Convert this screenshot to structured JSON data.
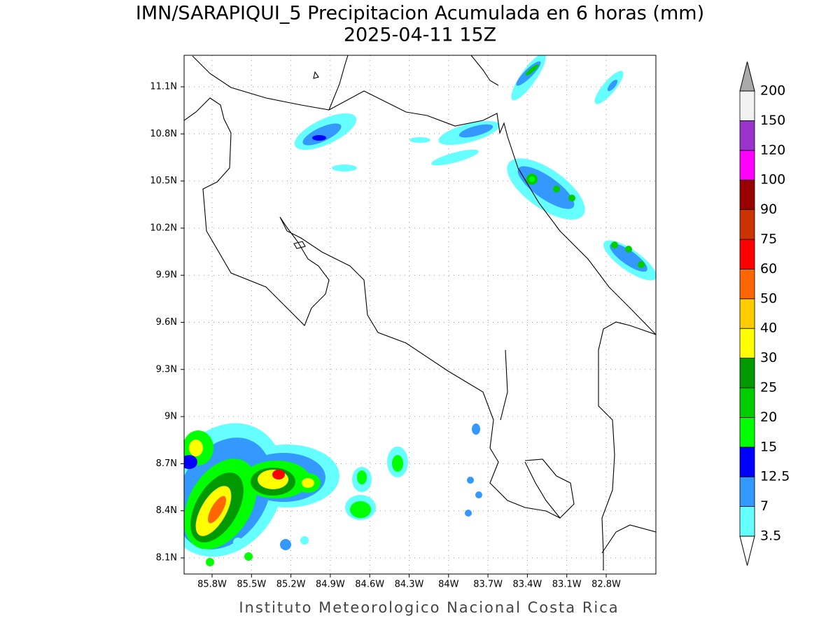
{
  "header": {
    "title": "IMN/SARAPIQUI_5 Precipitacion Acumulada en 6 horas (mm)",
    "subtitle": "2025-04-11 15Z"
  },
  "map": {
    "lat_ticks": [
      "11.1N",
      "10.8N",
      "10.5N",
      "10.2N",
      "9.9N",
      "9.6N",
      "9.3N",
      "9N",
      "8.7N",
      "8.4N",
      "8.1N"
    ],
    "lon_ticks": [
      "85.8W",
      "85.5W",
      "85.2W",
      "84.9W",
      "84.6W",
      "84.3W",
      "84W",
      "83.7W",
      "83.4W",
      "83.1W",
      "82.8W"
    ],
    "grid": true
  },
  "colorbar": {
    "labels": [
      "3.5",
      "7",
      "12.5",
      "15",
      "20",
      "25",
      "30",
      "40",
      "50",
      "60",
      "75",
      "90",
      "100",
      "120",
      "150",
      "200"
    ],
    "colors": [
      "#66ffff",
      "#3399ff",
      "#0000ff",
      "#00ff00",
      "#00cc00",
      "#009900",
      "#ffff00",
      "#ffcc00",
      "#ff6600",
      "#ff0000",
      "#cc3300",
      "#990000",
      "#ff00ff",
      "#9933cc",
      "#f2f2f2"
    ],
    "over_color": "#aaaaaa",
    "under_color": "#ffffff"
  },
  "footer": "Instituto Meteorologico Nacional Costa Rica"
}
